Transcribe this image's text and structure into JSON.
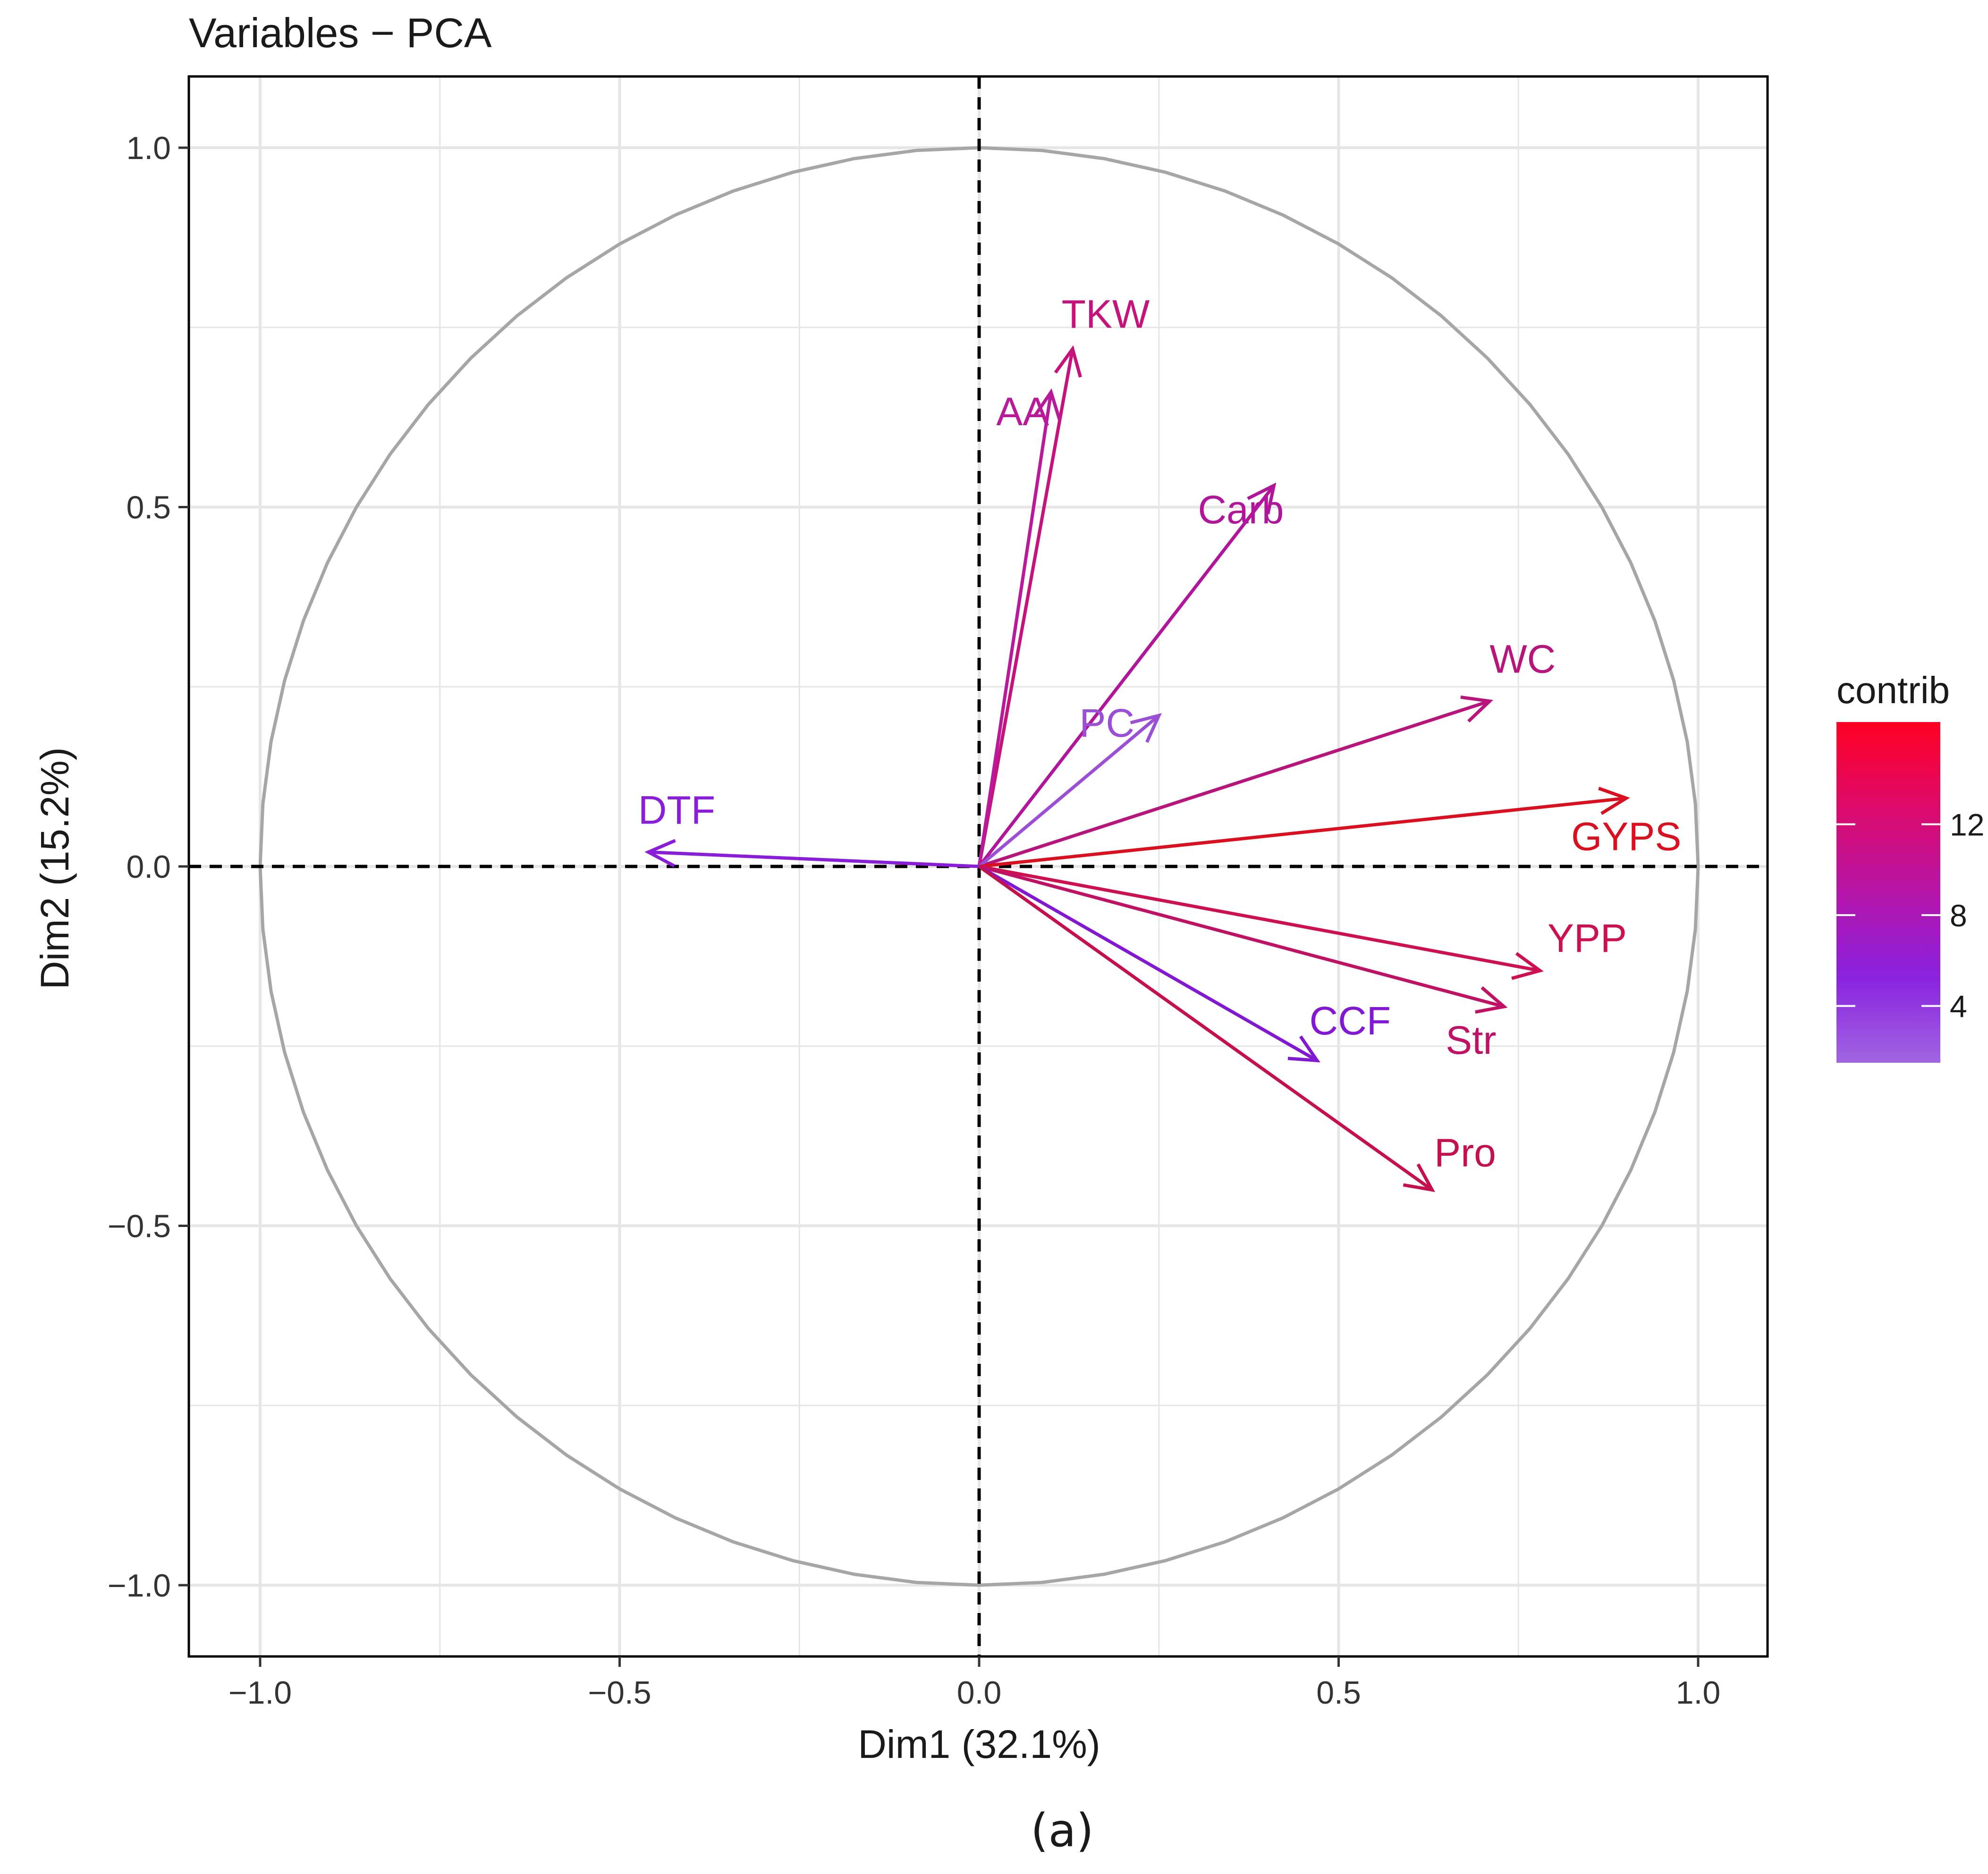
{
  "chart_data": {
    "type": "scatter",
    "title": "Variables − PCA",
    "xlabel": "Dim1 (32.1%)",
    "ylabel": "Dim2 (15.2%)",
    "xlim": [
      -1.1,
      1.1
    ],
    "ylim": [
      -1.1,
      1.1
    ],
    "x_ticks": [
      -1.0,
      -0.5,
      0.0,
      0.5,
      1.0
    ],
    "y_ticks": [
      -1.0,
      -0.5,
      0.0,
      0.5,
      1.0
    ],
    "x_tick_labels": [
      "−1.0",
      "−0.5",
      "0.0",
      "0.5",
      "1.0"
    ],
    "y_tick_labels": [
      "−1.0",
      "−0.5",
      "0.0",
      "0.5",
      "1.0"
    ],
    "grid": true,
    "correlation_circle": true,
    "reference_lines": [
      "x=0",
      "y=0"
    ],
    "variables": [
      {
        "name": "TKW",
        "x": 0.13,
        "y": 0.72,
        "contrib": 10.5,
        "color": "#c4137a"
      },
      {
        "name": "AA",
        "x": 0.1,
        "y": 0.66,
        "contrib": 9.0,
        "color": "#b81a9a"
      },
      {
        "name": "Carb",
        "x": 0.41,
        "y": 0.53,
        "contrib": 9.0,
        "color": "#b0159a"
      },
      {
        "name": "WC",
        "x": 0.71,
        "y": 0.23,
        "contrib": 10.5,
        "color": "#b8157a"
      },
      {
        "name": "PC",
        "x": 0.25,
        "y": 0.21,
        "contrib": 2.0,
        "color": "#9a4fd6"
      },
      {
        "name": "DTF",
        "x": -0.46,
        "y": 0.02,
        "contrib": 4.0,
        "color": "#8a1ed8"
      },
      {
        "name": "GYPS",
        "x": 0.9,
        "y": 0.095,
        "contrib": 15.0,
        "color": "#d9101f"
      },
      {
        "name": "YPP",
        "x": 0.78,
        "y": -0.145,
        "contrib": 12.5,
        "color": "#cc1050"
      },
      {
        "name": "Str",
        "x": 0.73,
        "y": -0.195,
        "contrib": 11.0,
        "color": "#c01265"
      },
      {
        "name": "CCF",
        "x": 0.47,
        "y": -0.27,
        "contrib": 4.0,
        "color": "#8318d2"
      },
      {
        "name": "Pro",
        "x": 0.63,
        "y": -0.45,
        "contrib": 11.5,
        "color": "#c5104e"
      }
    ],
    "legend": {
      "title": "contrib",
      "placement": "right",
      "tick_values": [
        4,
        8,
        12
      ],
      "tick_labels": [
        "4",
        "8",
        "12"
      ],
      "range": [
        1.5,
        16.5
      ],
      "gradient_colors": [
        "#a066e0",
        "#8a22e0",
        "#b515a8",
        "#dd0a6a",
        "#ff0022"
      ]
    }
  },
  "caption": "(a)",
  "colors": {
    "axis_box": "#000000",
    "grid": "#e6e6e6",
    "circle": "#a6a6a6",
    "reference_line": "#000000",
    "text": "#1a1a1a"
  }
}
